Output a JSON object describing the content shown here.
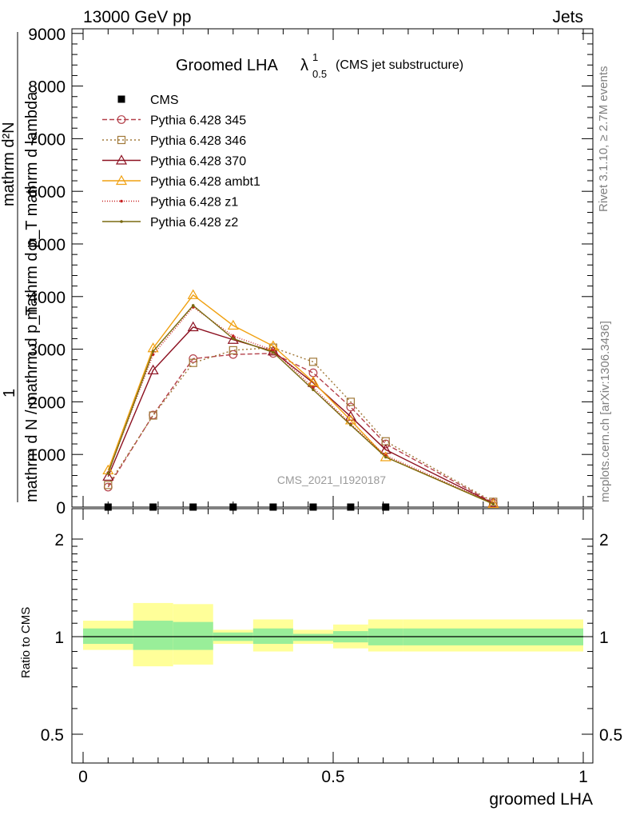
{
  "header": {
    "left": "13000 GeV pp",
    "right": "Jets"
  },
  "side": {
    "rivet": "Rivet 3.1.10, ≥ 2.7M events",
    "mcplots": "mcplots.cern.ch [arXiv:1306.3436]"
  },
  "title": {
    "main": "Groomed LHA",
    "lambda": "λ",
    "sup": "1",
    "sub": "0.5",
    "note": "(CMS jet substructure)"
  },
  "watermark": "CMS_2021_I1920187",
  "ylabel": {
    "one": "1",
    "denominator": "mathrm d N / mathrm d p_T",
    "numerator": "mathrm d²N",
    "numerator_denominator": "mathrm d p_T mathrm d lambda"
  },
  "xlabel": "groomed LHA",
  "ratio_ylabel": "Ratio to CMS",
  "chart_data": [
    {
      "type": "line",
      "panel": "main",
      "xlim": [
        0,
        1
      ],
      "ylim": [
        0,
        9000
      ],
      "yticks": [
        "0",
        "1000",
        "2000",
        "3000",
        "4000",
        "5000",
        "6000",
        "7000",
        "8000",
        "9000"
      ],
      "ytick_values": [
        0,
        1000,
        2000,
        3000,
        4000,
        5000,
        6000,
        7000,
        8000,
        9000
      ],
      "x": [
        0.05,
        0.14,
        0.22,
        0.3,
        0.38,
        0.46,
        0.535,
        0.605,
        0.82
      ],
      "series": [
        {
          "name": "CMS",
          "color": "#000000",
          "marker": "square",
          "values": [
            0,
            0,
            0,
            0,
            0,
            0,
            0,
            0,
            null
          ]
        },
        {
          "name": "Pythia 6.428 345",
          "color": "#b4404a",
          "marker": "circle",
          "dash": "6,3",
          "values": [
            380,
            1750,
            2820,
            2900,
            2920,
            2550,
            1900,
            1200,
            80
          ]
        },
        {
          "name": "Pythia 6.428 346",
          "color": "#a07838",
          "marker": "square-open",
          "dash": "2,3",
          "values": [
            420,
            1740,
            2740,
            2980,
            3030,
            2760,
            2000,
            1250,
            100
          ]
        },
        {
          "name": "Pythia 6.428 370",
          "color": "#8c1020",
          "marker": "triangle-open",
          "dash": "",
          "values": [
            580,
            2600,
            3420,
            3180,
            2960,
            2360,
            1720,
            1090,
            70
          ]
        },
        {
          "name": "Pythia 6.428 ambt1",
          "color": "#f0a010",
          "marker": "triangle-open",
          "dash": "",
          "values": [
            700,
            3020,
            4030,
            3450,
            3060,
            2380,
            1650,
            950,
            60
          ]
        },
        {
          "name": "Pythia 6.428 z1",
          "color": "#c82020",
          "marker": "dot",
          "dash": "1,2",
          "values": [
            650,
            2900,
            3800,
            3250,
            2980,
            2270,
            1580,
            980,
            70
          ]
        },
        {
          "name": "Pythia 6.428 z2",
          "color": "#7a6a10",
          "marker": "dot",
          "dash": "",
          "values": [
            640,
            2960,
            3830,
            3200,
            2940,
            2230,
            1560,
            950,
            60
          ]
        }
      ]
    },
    {
      "type": "area",
      "panel": "ratio",
      "xlim": [
        0,
        1
      ],
      "ylim": [
        0.4,
        2.3
      ],
      "ylog": true,
      "yticks": [
        "0.5",
        "1",
        "2"
      ],
      "ytick_values": [
        0.5,
        1,
        2
      ],
      "xticks": [
        "0",
        "0.5",
        "1"
      ],
      "xtick_values": [
        0,
        0.5,
        1
      ],
      "reference": 1,
      "bins": [
        {
          "x0": 0.0,
          "x1": 0.1,
          "inner": [
            0.95,
            1.06
          ],
          "outer": [
            0.91,
            1.12
          ]
        },
        {
          "x0": 0.1,
          "x1": 0.18,
          "inner": [
            0.91,
            1.12
          ],
          "outer": [
            0.81,
            1.27
          ]
        },
        {
          "x0": 0.18,
          "x1": 0.26,
          "inner": [
            0.91,
            1.11
          ],
          "outer": [
            0.82,
            1.26
          ]
        },
        {
          "x0": 0.26,
          "x1": 0.34,
          "inner": [
            0.97,
            1.03
          ],
          "outer": [
            0.95,
            1.05
          ]
        },
        {
          "x0": 0.34,
          "x1": 0.42,
          "inner": [
            0.95,
            1.06
          ],
          "outer": [
            0.9,
            1.13
          ]
        },
        {
          "x0": 0.42,
          "x1": 0.5,
          "inner": [
            0.97,
            1.02
          ],
          "outer": [
            0.95,
            1.05
          ]
        },
        {
          "x0": 0.5,
          "x1": 0.57,
          "inner": [
            0.96,
            1.04
          ],
          "outer": [
            0.92,
            1.09
          ]
        },
        {
          "x0": 0.57,
          "x1": 0.64,
          "inner": [
            0.94,
            1.06
          ],
          "outer": [
            0.9,
            1.13
          ]
        },
        {
          "x0": 0.64,
          "x1": 1.0,
          "inner": [
            0.94,
            1.06
          ],
          "outer": [
            0.9,
            1.13
          ]
        }
      ],
      "colors": {
        "inner": "#99ee99",
        "outer": "#ffff99"
      }
    }
  ]
}
